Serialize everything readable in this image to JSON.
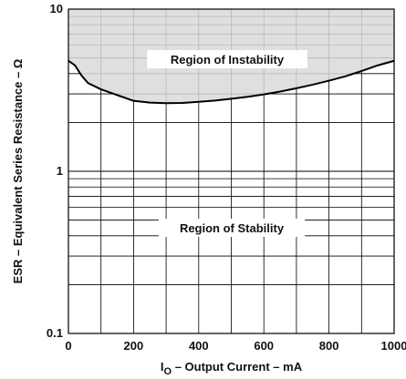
{
  "chart_data": {
    "type": "area",
    "xlabel": {
      "main": "I",
      "subscript": "O",
      "rest": " – Output Current – mA"
    },
    "ylabel": "ESR – Equivalent Series Resistance – Ω",
    "x_ticks": [
      "0",
      "200",
      "400",
      "600",
      "800",
      "1000"
    ],
    "y_ticks": [
      "0.1",
      "1",
      "10"
    ],
    "xlim": [
      0,
      1000
    ],
    "ylim": [
      0.1,
      10
    ],
    "y_scale": "log",
    "grid": true,
    "annotations": {
      "instability": "Region of Instability",
      "stability": "Region of Stability"
    },
    "series": [
      {
        "x": [
          0,
          20,
          40,
          60,
          100,
          150,
          200,
          250,
          300,
          350,
          400,
          450,
          500,
          550,
          600,
          650,
          700,
          750,
          800,
          850,
          900,
          950,
          1000
        ],
        "y": [
          4.8,
          4.5,
          3.9,
          3.5,
          3.2,
          2.95,
          2.72,
          2.65,
          2.63,
          2.64,
          2.68,
          2.73,
          2.8,
          2.88,
          2.98,
          3.1,
          3.25,
          3.42,
          3.62,
          3.85,
          4.15,
          4.5,
          4.8
        ]
      }
    ],
    "colors": {
      "fill": "#d9d9d9",
      "line": "#000000",
      "grid": "#000000"
    }
  }
}
